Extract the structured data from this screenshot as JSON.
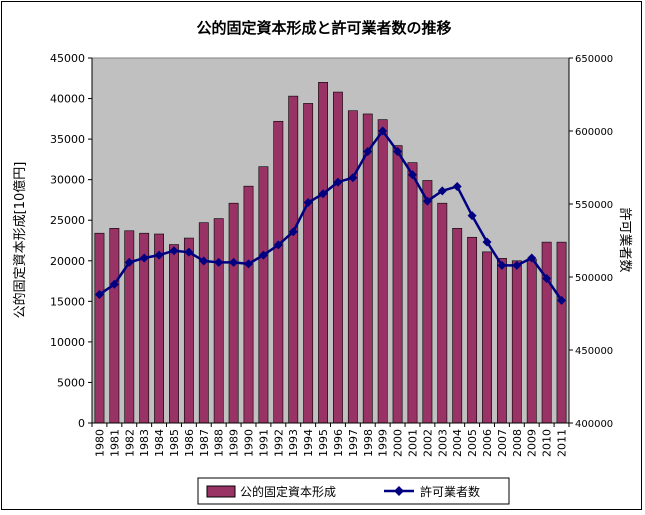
{
  "chart_data": {
    "type": "bar",
    "title": "公的固定資本形成と許可業者数の推移",
    "xlabel": "",
    "ylabel": "公的固定資本形成[10億円]",
    "y2label": "許可業者数",
    "categories": [
      "1980",
      "1981",
      "1982",
      "1983",
      "1984",
      "1985",
      "1986",
      "1987",
      "1988",
      "1989",
      "1990",
      "1991",
      "1992",
      "1993",
      "1994",
      "1995",
      "1996",
      "1997",
      "1998",
      "1999",
      "2000",
      "2001",
      "2002",
      "2003",
      "2004",
      "2005",
      "2006",
      "2007",
      "2008",
      "2009",
      "2010",
      "2011"
    ],
    "ylim": [
      0,
      45000
    ],
    "y2lim": [
      400000,
      650000
    ],
    "yticks": [
      "0",
      "5000",
      "10000",
      "15000",
      "20000",
      "25000",
      "30000",
      "35000",
      "40000",
      "45000"
    ],
    "y2ticks": [
      "400000",
      "450000",
      "500000",
      "550000",
      "600000",
      "650000"
    ],
    "grid": false,
    "plot_background": "#c0c0c0",
    "legend_position": "bottom",
    "series": [
      {
        "name": "公的固定資本形成",
        "kind": "bar",
        "axis": "left",
        "color": "#993366",
        "values": [
          23400,
          24000,
          23700,
          23400,
          23300,
          22000,
          22800,
          24700,
          25200,
          27100,
          29200,
          31600,
          37200,
          40300,
          39400,
          42000,
          40800,
          38500,
          38100,
          37400,
          34200,
          32100,
          29900,
          27100,
          24000,
          22900,
          21100,
          20300,
          20000,
          20200,
          22300,
          22300
        ]
      },
      {
        "name": "許可業者数",
        "kind": "line",
        "axis": "right",
        "color": "#000080",
        "values": [
          488000,
          495000,
          510000,
          513000,
          515000,
          518000,
          517000,
          511000,
          510000,
          510000,
          509000,
          515000,
          522000,
          531000,
          551000,
          557000,
          565000,
          568000,
          586000,
          600000,
          586000,
          570000,
          552000,
          559000,
          562000,
          542000,
          524000,
          508000,
          508000,
          513000,
          499000,
          484000
        ]
      }
    ]
  }
}
